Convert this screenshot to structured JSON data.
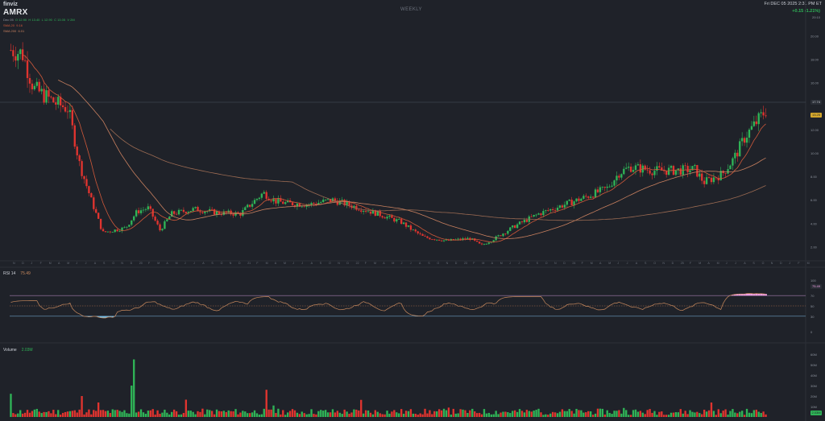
{
  "header": {
    "brand": "finviz",
    "ticker": "AMRX",
    "ohlc": {
      "label": "Dec 05",
      "o": "O 12.90",
      "h": "H 13.40",
      "l": "L 12.90",
      "c": "C 13.05",
      "v": "V 2M"
    },
    "ma_lines": [
      {
        "label": "SMA 20",
        "value": "9.16",
        "color": "#d0593a"
      },
      {
        "label": "SMA 200",
        "value": "6.01",
        "color": "#c9805f"
      }
    ],
    "timeframe": "WEEKLY",
    "datetime": "Fri DEC 05 2025 2:31 PM ET",
    "change": "+0.15 (1.21%)",
    "time_small": "20:10"
  },
  "price_axis": {
    "ticks": [
      "20.00",
      "18.00",
      "16.00",
      "12.00",
      "10.00",
      "8.00",
      "6.00",
      "4.00",
      "2.00"
    ],
    "badge_value": "13.25",
    "badge_color": "#d4a72c",
    "line_value": "17.74"
  },
  "rsi": {
    "label": "RSI 14",
    "value": "75.49",
    "ticks": [
      "100",
      "70",
      "50",
      "30",
      "0"
    ],
    "badge_value": "75.49"
  },
  "volume": {
    "label": "Volume",
    "value": "2.03M",
    "ticks": [
      "60M",
      "50M",
      "40M",
      "30M",
      "20M",
      "10M"
    ],
    "badge_value": "2.03M"
  },
  "x_axis": {
    "labels": [
      "N",
      "D",
      "J",
      "F",
      "M",
      "A",
      "M",
      "J",
      "J",
      "A",
      "S",
      "O",
      "N",
      "D",
      "20",
      "F",
      "M",
      "A",
      "M",
      "J",
      "J",
      "A",
      "S",
      "O",
      "N",
      "D",
      "21",
      "F",
      "M",
      "A",
      "M",
      "J",
      "J",
      "A",
      "S",
      "O",
      "N",
      "D",
      "22",
      "F",
      "M",
      "A",
      "M",
      "J",
      "J",
      "A",
      "S",
      "O",
      "N",
      "D",
      "23",
      "F",
      "M",
      "A",
      "M",
      "J",
      "J",
      "A",
      "S",
      "O",
      "N",
      "D",
      "24",
      "F",
      "M",
      "A",
      "M",
      "J",
      "J",
      "A",
      "S",
      "O",
      "N",
      "D",
      "25",
      "F",
      "M",
      "A",
      "M",
      "J",
      "J",
      "A",
      "S",
      "O",
      "N",
      "D",
      "J",
      "F",
      "M"
    ]
  },
  "colors": {
    "up": "#2fb457",
    "down": "#e0342f",
    "rsi_line": "#c98a5e",
    "rsi_over": "#f2a1e6",
    "rsi_under": "#77bfe6"
  }
}
